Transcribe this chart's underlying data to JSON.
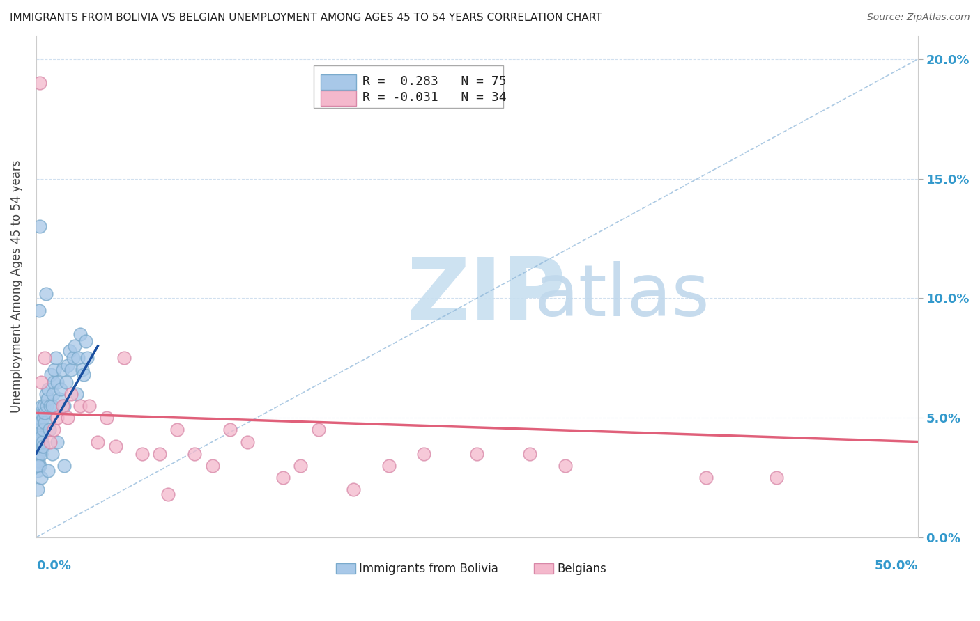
{
  "title": "IMMIGRANTS FROM BOLIVIA VS BELGIAN UNEMPLOYMENT AMONG AGES 45 TO 54 YEARS CORRELATION CHART",
  "source": "Source: ZipAtlas.com",
  "ylabel": "Unemployment Among Ages 45 to 54 years",
  "ytick_vals": [
    0.0,
    5.0,
    10.0,
    15.0,
    20.0
  ],
  "xlim": [
    0.0,
    50.0
  ],
  "ylim": [
    0.0,
    21.0
  ],
  "legend_blue_r": "0.283",
  "legend_blue_n": "75",
  "legend_pink_r": "-0.031",
  "legend_pink_n": "34",
  "blue_color": "#a8c8e8",
  "blue_edge_color": "#7aaacc",
  "blue_line_color": "#1a4fa0",
  "pink_color": "#f4b8cc",
  "pink_edge_color": "#d888a8",
  "pink_line_color": "#e0607a",
  "ref_line_color": "#8ab4d8",
  "watermark_zip_color": "#c8dff0",
  "watermark_atlas_color": "#c0d8ec",
  "blue_scatter_x": [
    0.05,
    0.06,
    0.07,
    0.08,
    0.09,
    0.1,
    0.1,
    0.11,
    0.12,
    0.13,
    0.14,
    0.15,
    0.16,
    0.17,
    0.18,
    0.19,
    0.2,
    0.21,
    0.22,
    0.23,
    0.24,
    0.25,
    0.26,
    0.27,
    0.28,
    0.3,
    0.32,
    0.35,
    0.38,
    0.4,
    0.42,
    0.45,
    0.48,
    0.5,
    0.55,
    0.6,
    0.65,
    0.7,
    0.75,
    0.8,
    0.85,
    0.9,
    0.95,
    1.0,
    1.05,
    1.1,
    1.2,
    1.3,
    1.4,
    1.5,
    1.6,
    1.7,
    1.8,
    1.9,
    2.0,
    2.1,
    2.2,
    2.3,
    2.4,
    2.5,
    2.6,
    2.7,
    2.8,
    2.9,
    0.08,
    0.12,
    0.15,
    0.22,
    0.3,
    0.4,
    0.55,
    0.7,
    0.9,
    1.2,
    1.6
  ],
  "blue_scatter_y": [
    3.5,
    4.2,
    3.8,
    4.5,
    3.0,
    2.8,
    3.5,
    4.0,
    3.2,
    5.0,
    4.5,
    4.8,
    3.8,
    3.5,
    4.2,
    3.0,
    4.5,
    5.0,
    3.8,
    4.0,
    4.5,
    5.2,
    4.8,
    3.5,
    4.0,
    4.2,
    5.5,
    3.8,
    4.0,
    5.0,
    4.5,
    5.5,
    4.8,
    5.2,
    6.0,
    5.5,
    5.8,
    6.2,
    4.5,
    5.5,
    6.8,
    5.5,
    6.0,
    6.5,
    7.0,
    7.5,
    6.5,
    5.8,
    6.2,
    7.0,
    5.5,
    6.5,
    7.2,
    7.8,
    7.0,
    7.5,
    8.0,
    6.0,
    7.5,
    8.5,
    7.0,
    6.8,
    8.2,
    7.5,
    2.0,
    3.0,
    9.5,
    13.0,
    2.5,
    3.8,
    10.2,
    2.8,
    3.5,
    4.0,
    3.0
  ],
  "pink_scatter_x": [
    0.2,
    0.3,
    0.5,
    0.8,
    1.0,
    1.2,
    1.5,
    1.8,
    2.0,
    2.5,
    3.0,
    3.5,
    4.0,
    4.5,
    5.0,
    6.0,
    7.0,
    7.5,
    8.0,
    9.0,
    10.0,
    11.0,
    12.0,
    14.0,
    15.0,
    16.0,
    18.0,
    20.0,
    22.0,
    25.0,
    28.0,
    30.0,
    38.0,
    42.0
  ],
  "pink_scatter_y": [
    19.0,
    6.5,
    7.5,
    4.0,
    4.5,
    5.0,
    5.5,
    5.0,
    6.0,
    5.5,
    5.5,
    4.0,
    5.0,
    3.8,
    7.5,
    3.5,
    3.5,
    1.8,
    4.5,
    3.5,
    3.0,
    4.5,
    4.0,
    2.5,
    3.0,
    4.5,
    2.0,
    3.0,
    3.5,
    3.5,
    3.5,
    3.0,
    2.5,
    2.5
  ],
  "blue_line_x0": 0.0,
  "blue_line_y0": 3.5,
  "blue_line_x1": 3.5,
  "blue_line_y1": 8.0,
  "pink_line_x0": 0.0,
  "pink_line_y0": 5.2,
  "pink_line_x1": 50.0,
  "pink_line_y1": 4.0,
  "ref_line_x0": 0.0,
  "ref_line_y0": 0.0,
  "ref_line_x1": 50.0,
  "ref_line_y1": 20.0
}
